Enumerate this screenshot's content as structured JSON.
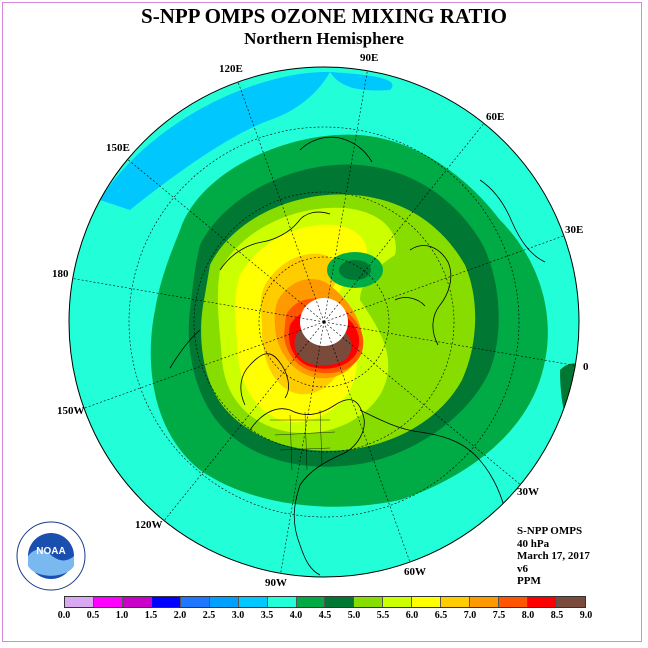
{
  "title": "S-NPP OMPS OZONE MIXING RATIO",
  "subtitle": "Northern Hemisphere",
  "longitude_labels": [
    {
      "key": "lon-90e",
      "text": "90E"
    },
    {
      "key": "lon-60e",
      "text": "60E"
    },
    {
      "key": "lon-30e",
      "text": "30E"
    },
    {
      "key": "lon-0",
      "text": "0"
    },
    {
      "key": "lon-30w",
      "text": "30W"
    },
    {
      "key": "lon-60w",
      "text": "60W"
    },
    {
      "key": "lon-90w",
      "text": "90W"
    },
    {
      "key": "lon-120w",
      "text": "120W"
    },
    {
      "key": "lon-150w",
      "text": "150W"
    },
    {
      "key": "lon-180",
      "text": "180"
    },
    {
      "key": "lon-150e",
      "text": "150E"
    },
    {
      "key": "lon-120e",
      "text": "120E"
    }
  ],
  "info": {
    "instrument": "S-NPP OMPS",
    "level": "40 hPa",
    "date": "March 17, 2017",
    "version": "v6",
    "units": "PPM"
  },
  "colorbar": {
    "labels": [
      "0.0",
      "0.5",
      "1.0",
      "1.5",
      "2.0",
      "2.5",
      "3.0",
      "3.5",
      "4.0",
      "4.5",
      "5.0",
      "5.5",
      "6.0",
      "6.5",
      "7.0",
      "7.5",
      "8.0",
      "8.5",
      "9.0"
    ],
    "colors": [
      "#b088f0",
      "#d8a8f0",
      "#ff00ff",
      "#c800c8",
      "#0000ff",
      "#1e78ff",
      "#00a0ff",
      "#00c8ff",
      "#22ffd8",
      "#00aa44",
      "#007733",
      "#88dd00",
      "#ccff00",
      "#ffff00",
      "#ffcc00",
      "#ff9900",
      "#ff5500",
      "#ff0000",
      "#7a4a3a"
    ]
  },
  "logo": {
    "text": "NOAA"
  }
}
